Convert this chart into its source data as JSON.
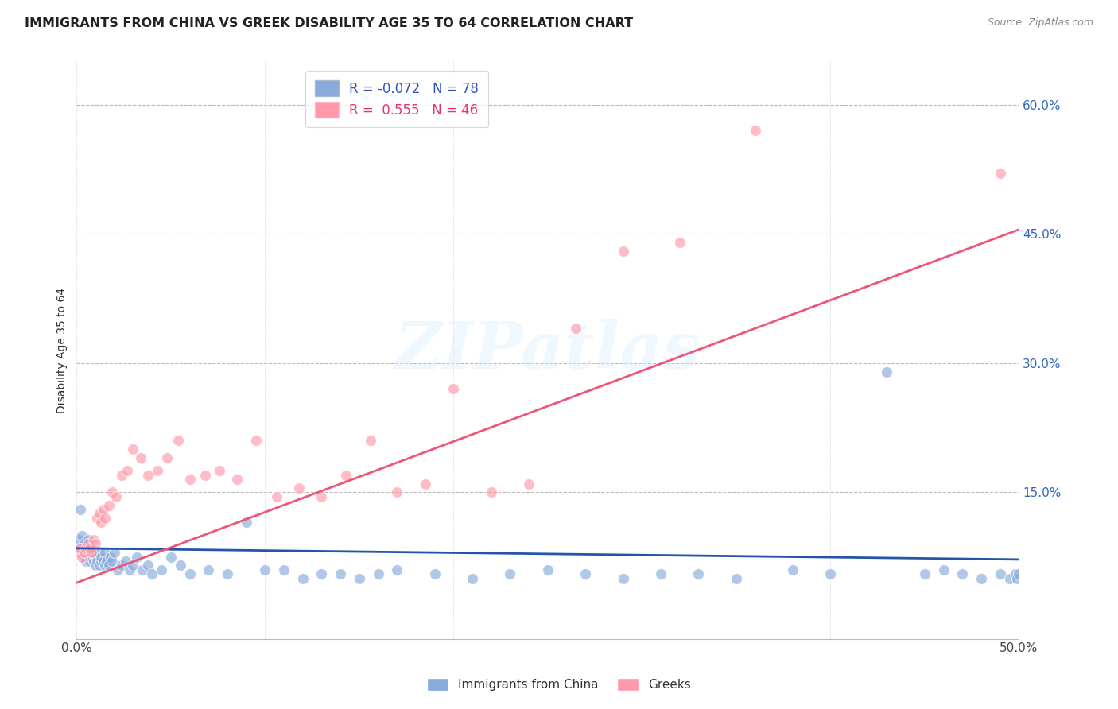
{
  "title": "IMMIGRANTS FROM CHINA VS GREEK DISABILITY AGE 35 TO 64 CORRELATION CHART",
  "source": "Source: ZipAtlas.com",
  "ylabel": "Disability Age 35 to 64",
  "xlim": [
    0.0,
    0.5
  ],
  "ylim": [
    -0.02,
    0.65
  ],
  "xticks": [
    0.0,
    0.1,
    0.2,
    0.3,
    0.4,
    0.5
  ],
  "xticklabels": [
    "0.0%",
    "",
    "",
    "",
    "",
    "50.0%"
  ],
  "yticks_right": [
    0.0,
    0.15,
    0.3,
    0.45,
    0.6
  ],
  "yticklabels_right": [
    "",
    "15.0%",
    "30.0%",
    "45.0%",
    "60.0%"
  ],
  "blue_R": "-0.072",
  "blue_N": "78",
  "pink_R": "0.555",
  "pink_N": "46",
  "blue_color": "#88AADD",
  "pink_color": "#FF99AA",
  "blue_line_color": "#2255AA",
  "pink_line_color": "#EE5577",
  "legend_label_blue": "Immigrants from China",
  "legend_label_pink": "Greeks",
  "watermark": "ZIPatlas",
  "blue_scatter_x": [
    0.001,
    0.002,
    0.002,
    0.003,
    0.003,
    0.004,
    0.004,
    0.005,
    0.005,
    0.006,
    0.006,
    0.007,
    0.007,
    0.008,
    0.008,
    0.009,
    0.009,
    0.01,
    0.01,
    0.011,
    0.011,
    0.012,
    0.012,
    0.013,
    0.013,
    0.014,
    0.015,
    0.015,
    0.016,
    0.017,
    0.018,
    0.019,
    0.02,
    0.022,
    0.024,
    0.026,
    0.028,
    0.03,
    0.032,
    0.035,
    0.038,
    0.04,
    0.045,
    0.05,
    0.055,
    0.06,
    0.07,
    0.08,
    0.09,
    0.1,
    0.11,
    0.12,
    0.13,
    0.14,
    0.15,
    0.16,
    0.17,
    0.19,
    0.21,
    0.23,
    0.25,
    0.27,
    0.29,
    0.31,
    0.33,
    0.35,
    0.38,
    0.4,
    0.43,
    0.45,
    0.46,
    0.47,
    0.48,
    0.49,
    0.495,
    0.498,
    0.499,
    0.5
  ],
  "blue_scatter_y": [
    0.095,
    0.13,
    0.085,
    0.1,
    0.08,
    0.09,
    0.075,
    0.085,
    0.07,
    0.08,
    0.095,
    0.075,
    0.07,
    0.085,
    0.075,
    0.08,
    0.07,
    0.075,
    0.065,
    0.075,
    0.07,
    0.08,
    0.065,
    0.07,
    0.075,
    0.07,
    0.065,
    0.08,
    0.07,
    0.065,
    0.075,
    0.07,
    0.08,
    0.06,
    0.065,
    0.07,
    0.06,
    0.065,
    0.075,
    0.06,
    0.065,
    0.055,
    0.06,
    0.075,
    0.065,
    0.055,
    0.06,
    0.055,
    0.115,
    0.06,
    0.06,
    0.05,
    0.055,
    0.055,
    0.05,
    0.055,
    0.06,
    0.055,
    0.05,
    0.055,
    0.06,
    0.055,
    0.05,
    0.055,
    0.055,
    0.05,
    0.06,
    0.055,
    0.29,
    0.055,
    0.06,
    0.055,
    0.05,
    0.055,
    0.05,
    0.055,
    0.05,
    0.055
  ],
  "pink_scatter_x": [
    0.001,
    0.002,
    0.003,
    0.004,
    0.005,
    0.006,
    0.007,
    0.008,
    0.009,
    0.01,
    0.011,
    0.012,
    0.013,
    0.014,
    0.015,
    0.017,
    0.019,
    0.021,
    0.024,
    0.027,
    0.03,
    0.034,
    0.038,
    0.043,
    0.048,
    0.054,
    0.06,
    0.068,
    0.076,
    0.085,
    0.095,
    0.106,
    0.118,
    0.13,
    0.143,
    0.156,
    0.17,
    0.185,
    0.2,
    0.22,
    0.24,
    0.265,
    0.29,
    0.32,
    0.36,
    0.49
  ],
  "pink_scatter_y": [
    0.08,
    0.085,
    0.075,
    0.08,
    0.085,
    0.09,
    0.085,
    0.08,
    0.095,
    0.09,
    0.12,
    0.125,
    0.115,
    0.13,
    0.12,
    0.135,
    0.15,
    0.145,
    0.17,
    0.175,
    0.2,
    0.19,
    0.17,
    0.175,
    0.19,
    0.21,
    0.165,
    0.17,
    0.175,
    0.165,
    0.21,
    0.145,
    0.155,
    0.145,
    0.17,
    0.21,
    0.15,
    0.16,
    0.27,
    0.15,
    0.16,
    0.34,
    0.43,
    0.44,
    0.57,
    0.52
  ],
  "blue_line_x0": 0.0,
  "blue_line_y0": 0.085,
  "blue_line_x1": 0.5,
  "blue_line_y1": 0.072,
  "pink_line_x0": 0.0,
  "pink_line_y0": 0.045,
  "pink_line_x1": 0.5,
  "pink_line_y1": 0.455
}
